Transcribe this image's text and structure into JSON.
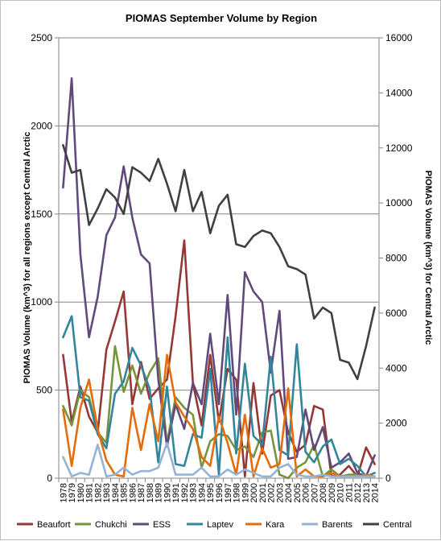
{
  "chart_data": {
    "type": "line",
    "title": "PIOMAS September Volume by Region",
    "ylabel_left": "PIOMAS Volume (km^3) for all regions except Central Arctic",
    "ylabel_right": "PIOMAS Volume (km^3) for Central Arctic",
    "ylim_left": [
      0,
      2500
    ],
    "ylim_right": [
      0,
      16000
    ],
    "yticks_left": [
      "0",
      "500",
      "1000",
      "1500",
      "2000",
      "2500"
    ],
    "yticks_right": [
      "0",
      "2000",
      "4000",
      "6000",
      "8000",
      "10000",
      "12000",
      "14000",
      "16000"
    ],
    "grid": true,
    "legend_position": "bottom",
    "x": [
      "1978",
      "1979",
      "1980",
      "1981",
      "1982",
      "1983",
      "1984",
      "1985",
      "1986",
      "1987",
      "1988",
      "1989",
      "1990",
      "1991",
      "1992",
      "1993",
      "1994",
      "1995",
      "1996",
      "1997",
      "1998",
      "1999",
      "2000",
      "2001",
      "2002",
      "2003",
      "2004",
      "2005",
      "2006",
      "2007",
      "2008",
      "2009",
      "2010",
      "2011",
      "2012",
      "2013",
      "2014"
    ],
    "series": [
      {
        "name": "Beaufort",
        "color": "#953735",
        "axis": "left",
        "values": [
          700,
          320,
          520,
          350,
          260,
          730,
          890,
          1060,
          420,
          660,
          450,
          510,
          560,
          920,
          1350,
          540,
          300,
          700,
          320,
          620,
          560,
          10,
          540,
          140,
          470,
          500,
          260,
          150,
          190,
          410,
          390,
          10,
          20,
          70,
          10,
          175,
          80
        ]
      },
      {
        "name": "Chukchi",
        "color": "#77933c",
        "axis": "left",
        "values": [
          410,
          300,
          500,
          460,
          260,
          200,
          750,
          490,
          640,
          480,
          600,
          680,
          200,
          460,
          400,
          360,
          60,
          210,
          250,
          240,
          160,
          180,
          120,
          260,
          270,
          20,
          0,
          60,
          90,
          190,
          10,
          50,
          10,
          20,
          20,
          10,
          10
        ]
      },
      {
        "name": "ESS",
        "color": "#604a7b",
        "axis": "left",
        "values": [
          1650,
          2270,
          1270,
          800,
          1030,
          1380,
          1480,
          1770,
          1480,
          1270,
          1220,
          560,
          180,
          420,
          280,
          540,
          420,
          820,
          420,
          1040,
          360,
          1170,
          1060,
          1000,
          600,
          950,
          110,
          120,
          390,
          160,
          290,
          60,
          90,
          140,
          30,
          10,
          130
        ]
      },
      {
        "name": "Laptev",
        "color": "#31859c",
        "axis": "left",
        "values": [
          800,
          920,
          460,
          440,
          250,
          170,
          480,
          550,
          740,
          640,
          510,
          90,
          520,
          80,
          70,
          250,
          230,
          620,
          20,
          800,
          140,
          650,
          240,
          190,
          690,
          160,
          130,
          760,
          150,
          90,
          180,
          220,
          80,
          110,
          70,
          10,
          30
        ]
      },
      {
        "name": "Kara",
        "color": "#e46c0a",
        "axis": "left",
        "values": [
          390,
          70,
          400,
          560,
          280,
          100,
          20,
          10,
          400,
          160,
          420,
          210,
          700,
          430,
          350,
          280,
          120,
          70,
          350,
          200,
          20,
          360,
          10,
          170,
          60,
          80,
          510,
          10,
          50,
          10,
          10,
          30,
          10,
          10,
          10,
          20,
          10
        ]
      },
      {
        "name": "Barents",
        "color": "#95b3d7",
        "axis": "left",
        "values": [
          120,
          10,
          30,
          20,
          190,
          10,
          20,
          60,
          20,
          40,
          40,
          60,
          200,
          20,
          20,
          20,
          60,
          10,
          10,
          50,
          20,
          50,
          30,
          10,
          10,
          60,
          80,
          20,
          10,
          10,
          20,
          10,
          10,
          10,
          10,
          10,
          10
        ]
      },
      {
        "name": "Central",
        "color": "#404040",
        "axis": "right",
        "values": [
          12100,
          11100,
          11200,
          9200,
          9800,
          10500,
          10200,
          9600,
          11300,
          11100,
          10800,
          11600,
          10700,
          9700,
          11200,
          9700,
          10400,
          8900,
          9900,
          10300,
          8500,
          8400,
          8800,
          9000,
          8900,
          8400,
          7700,
          7600,
          7400,
          5800,
          6200,
          6000,
          4300,
          4200,
          3600,
          4800,
          6200
        ]
      }
    ]
  }
}
